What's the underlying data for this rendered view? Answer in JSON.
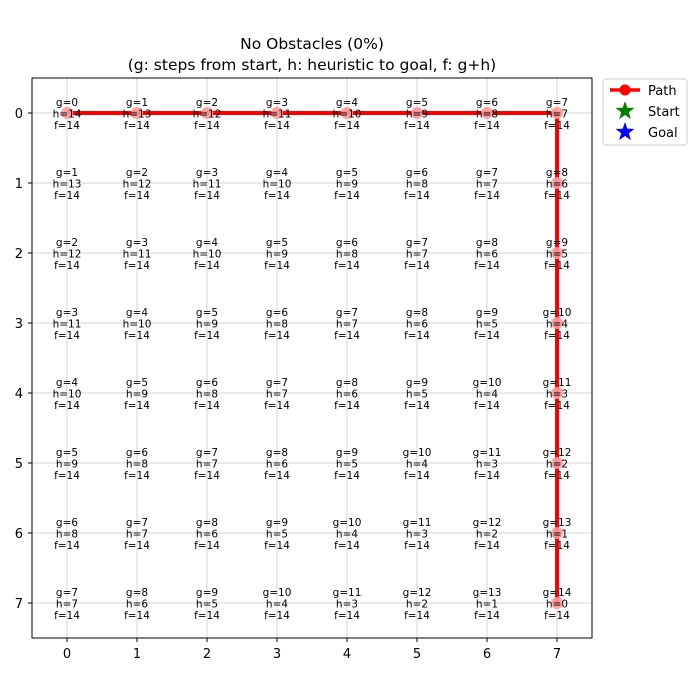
{
  "chart_data": {
    "type": "heatmap",
    "title": "No Obstacles (0%)",
    "subtitle": "(g: steps from start, h: heuristic to goal, f: g+h)",
    "xlabel": "",
    "ylabel": "",
    "grid_size": 8,
    "xlim": [
      -0.5,
      7.5
    ],
    "ylim": [
      7.5,
      -0.5
    ],
    "x_ticks": [
      "0",
      "1",
      "2",
      "3",
      "4",
      "5",
      "6",
      "7"
    ],
    "y_ticks": [
      "0",
      "1",
      "2",
      "3",
      "4",
      "5",
      "6",
      "7"
    ],
    "grid": true,
    "cells_note": "g = row + col, h = (7-row) + (7-col), f = 14 for every cell",
    "cells": [
      {
        "row": 0,
        "col": 0,
        "g": 0,
        "h": 14,
        "f": 14
      },
      {
        "row": 0,
        "col": 1,
        "g": 1,
        "h": 13,
        "f": 14
      },
      {
        "row": 0,
        "col": 2,
        "g": 2,
        "h": 12,
        "f": 14
      },
      {
        "row": 0,
        "col": 3,
        "g": 3,
        "h": 11,
        "f": 14
      },
      {
        "row": 0,
        "col": 4,
        "g": 4,
        "h": 10,
        "f": 14
      },
      {
        "row": 0,
        "col": 5,
        "g": 5,
        "h": 9,
        "f": 14
      },
      {
        "row": 0,
        "col": 6,
        "g": 6,
        "h": 8,
        "f": 14
      },
      {
        "row": 0,
        "col": 7,
        "g": 7,
        "h": 7,
        "f": 14
      },
      {
        "row": 1,
        "col": 0,
        "g": 1,
        "h": 13,
        "f": 14
      },
      {
        "row": 1,
        "col": 1,
        "g": 2,
        "h": 12,
        "f": 14
      },
      {
        "row": 1,
        "col": 2,
        "g": 3,
        "h": 11,
        "f": 14
      },
      {
        "row": 1,
        "col": 3,
        "g": 4,
        "h": 10,
        "f": 14
      },
      {
        "row": 1,
        "col": 4,
        "g": 5,
        "h": 9,
        "f": 14
      },
      {
        "row": 1,
        "col": 5,
        "g": 6,
        "h": 8,
        "f": 14
      },
      {
        "row": 1,
        "col": 6,
        "g": 7,
        "h": 7,
        "f": 14
      },
      {
        "row": 1,
        "col": 7,
        "g": 8,
        "h": 6,
        "f": 14
      },
      {
        "row": 2,
        "col": 0,
        "g": 2,
        "h": 12,
        "f": 14
      },
      {
        "row": 2,
        "col": 1,
        "g": 3,
        "h": 11,
        "f": 14
      },
      {
        "row": 2,
        "col": 2,
        "g": 4,
        "h": 10,
        "f": 14
      },
      {
        "row": 2,
        "col": 3,
        "g": 5,
        "h": 9,
        "f": 14
      },
      {
        "row": 2,
        "col": 4,
        "g": 6,
        "h": 8,
        "f": 14
      },
      {
        "row": 2,
        "col": 5,
        "g": 7,
        "h": 7,
        "f": 14
      },
      {
        "row": 2,
        "col": 6,
        "g": 8,
        "h": 6,
        "f": 14
      },
      {
        "row": 2,
        "col": 7,
        "g": 9,
        "h": 5,
        "f": 14
      },
      {
        "row": 3,
        "col": 0,
        "g": 3,
        "h": 11,
        "f": 14
      },
      {
        "row": 3,
        "col": 1,
        "g": 4,
        "h": 10,
        "f": 14
      },
      {
        "row": 3,
        "col": 2,
        "g": 5,
        "h": 9,
        "f": 14
      },
      {
        "row": 3,
        "col": 3,
        "g": 6,
        "h": 8,
        "f": 14
      },
      {
        "row": 3,
        "col": 4,
        "g": 7,
        "h": 7,
        "f": 14
      },
      {
        "row": 3,
        "col": 5,
        "g": 8,
        "h": 6,
        "f": 14
      },
      {
        "row": 3,
        "col": 6,
        "g": 9,
        "h": 5,
        "f": 14
      },
      {
        "row": 3,
        "col": 7,
        "g": 10,
        "h": 4,
        "f": 14
      },
      {
        "row": 4,
        "col": 0,
        "g": 4,
        "h": 10,
        "f": 14
      },
      {
        "row": 4,
        "col": 1,
        "g": 5,
        "h": 9,
        "f": 14
      },
      {
        "row": 4,
        "col": 2,
        "g": 6,
        "h": 8,
        "f": 14
      },
      {
        "row": 4,
        "col": 3,
        "g": 7,
        "h": 7,
        "f": 14
      },
      {
        "row": 4,
        "col": 4,
        "g": 8,
        "h": 6,
        "f": 14
      },
      {
        "row": 4,
        "col": 5,
        "g": 9,
        "h": 5,
        "f": 14
      },
      {
        "row": 4,
        "col": 6,
        "g": 10,
        "h": 4,
        "f": 14
      },
      {
        "row": 4,
        "col": 7,
        "g": 11,
        "h": 3,
        "f": 14
      },
      {
        "row": 5,
        "col": 0,
        "g": 5,
        "h": 9,
        "f": 14
      },
      {
        "row": 5,
        "col": 1,
        "g": 6,
        "h": 8,
        "f": 14
      },
      {
        "row": 5,
        "col": 2,
        "g": 7,
        "h": 7,
        "f": 14
      },
      {
        "row": 5,
        "col": 3,
        "g": 8,
        "h": 6,
        "f": 14
      },
      {
        "row": 5,
        "col": 4,
        "g": 9,
        "h": 5,
        "f": 14
      },
      {
        "row": 5,
        "col": 5,
        "g": 10,
        "h": 4,
        "f": 14
      },
      {
        "row": 5,
        "col": 6,
        "g": 11,
        "h": 3,
        "f": 14
      },
      {
        "row": 5,
        "col": 7,
        "g": 12,
        "h": 2,
        "f": 14
      },
      {
        "row": 6,
        "col": 0,
        "g": 6,
        "h": 8,
        "f": 14
      },
      {
        "row": 6,
        "col": 1,
        "g": 7,
        "h": 7,
        "f": 14
      },
      {
        "row": 6,
        "col": 2,
        "g": 8,
        "h": 6,
        "f": 14
      },
      {
        "row": 6,
        "col": 3,
        "g": 9,
        "h": 5,
        "f": 14
      },
      {
        "row": 6,
        "col": 4,
        "g": 10,
        "h": 4,
        "f": 14
      },
      {
        "row": 6,
        "col": 5,
        "g": 11,
        "h": 3,
        "f": 14
      },
      {
        "row": 6,
        "col": 6,
        "g": 12,
        "h": 2,
        "f": 14
      },
      {
        "row": 6,
        "col": 7,
        "g": 13,
        "h": 1,
        "f": 14
      },
      {
        "row": 7,
        "col": 0,
        "g": 7,
        "h": 7,
        "f": 14
      },
      {
        "row": 7,
        "col": 1,
        "g": 8,
        "h": 6,
        "f": 14
      },
      {
        "row": 7,
        "col": 2,
        "g": 9,
        "h": 5,
        "f": 14
      },
      {
        "row": 7,
        "col": 3,
        "g": 10,
        "h": 4,
        "f": 14
      },
      {
        "row": 7,
        "col": 4,
        "g": 11,
        "h": 3,
        "f": 14
      },
      {
        "row": 7,
        "col": 5,
        "g": 12,
        "h": 2,
        "f": 14
      },
      {
        "row": 7,
        "col": 6,
        "g": 13,
        "h": 1,
        "f": 14
      },
      {
        "row": 7,
        "col": 7,
        "g": 14,
        "h": 0,
        "f": 14
      }
    ],
    "path": {
      "name": "Path",
      "color": "#ff0000",
      "points": [
        [
          0,
          0
        ],
        [
          1,
          0
        ],
        [
          2,
          0
        ],
        [
          3,
          0
        ],
        [
          4,
          0
        ],
        [
          5,
          0
        ],
        [
          6,
          0
        ],
        [
          7,
          0
        ],
        [
          7,
          1
        ],
        [
          7,
          2
        ],
        [
          7,
          3
        ],
        [
          7,
          4
        ],
        [
          7,
          5
        ],
        [
          7,
          6
        ],
        [
          7,
          7
        ]
      ]
    },
    "start": {
      "name": "Start",
      "x": 0,
      "y": 0,
      "color": "#008000"
    },
    "goal": {
      "name": "Goal",
      "x": 7,
      "y": 7,
      "color": "#0000ff"
    },
    "legend": {
      "placement": "outside-top-right",
      "entries": [
        "Path",
        "Start",
        "Goal"
      ]
    }
  }
}
